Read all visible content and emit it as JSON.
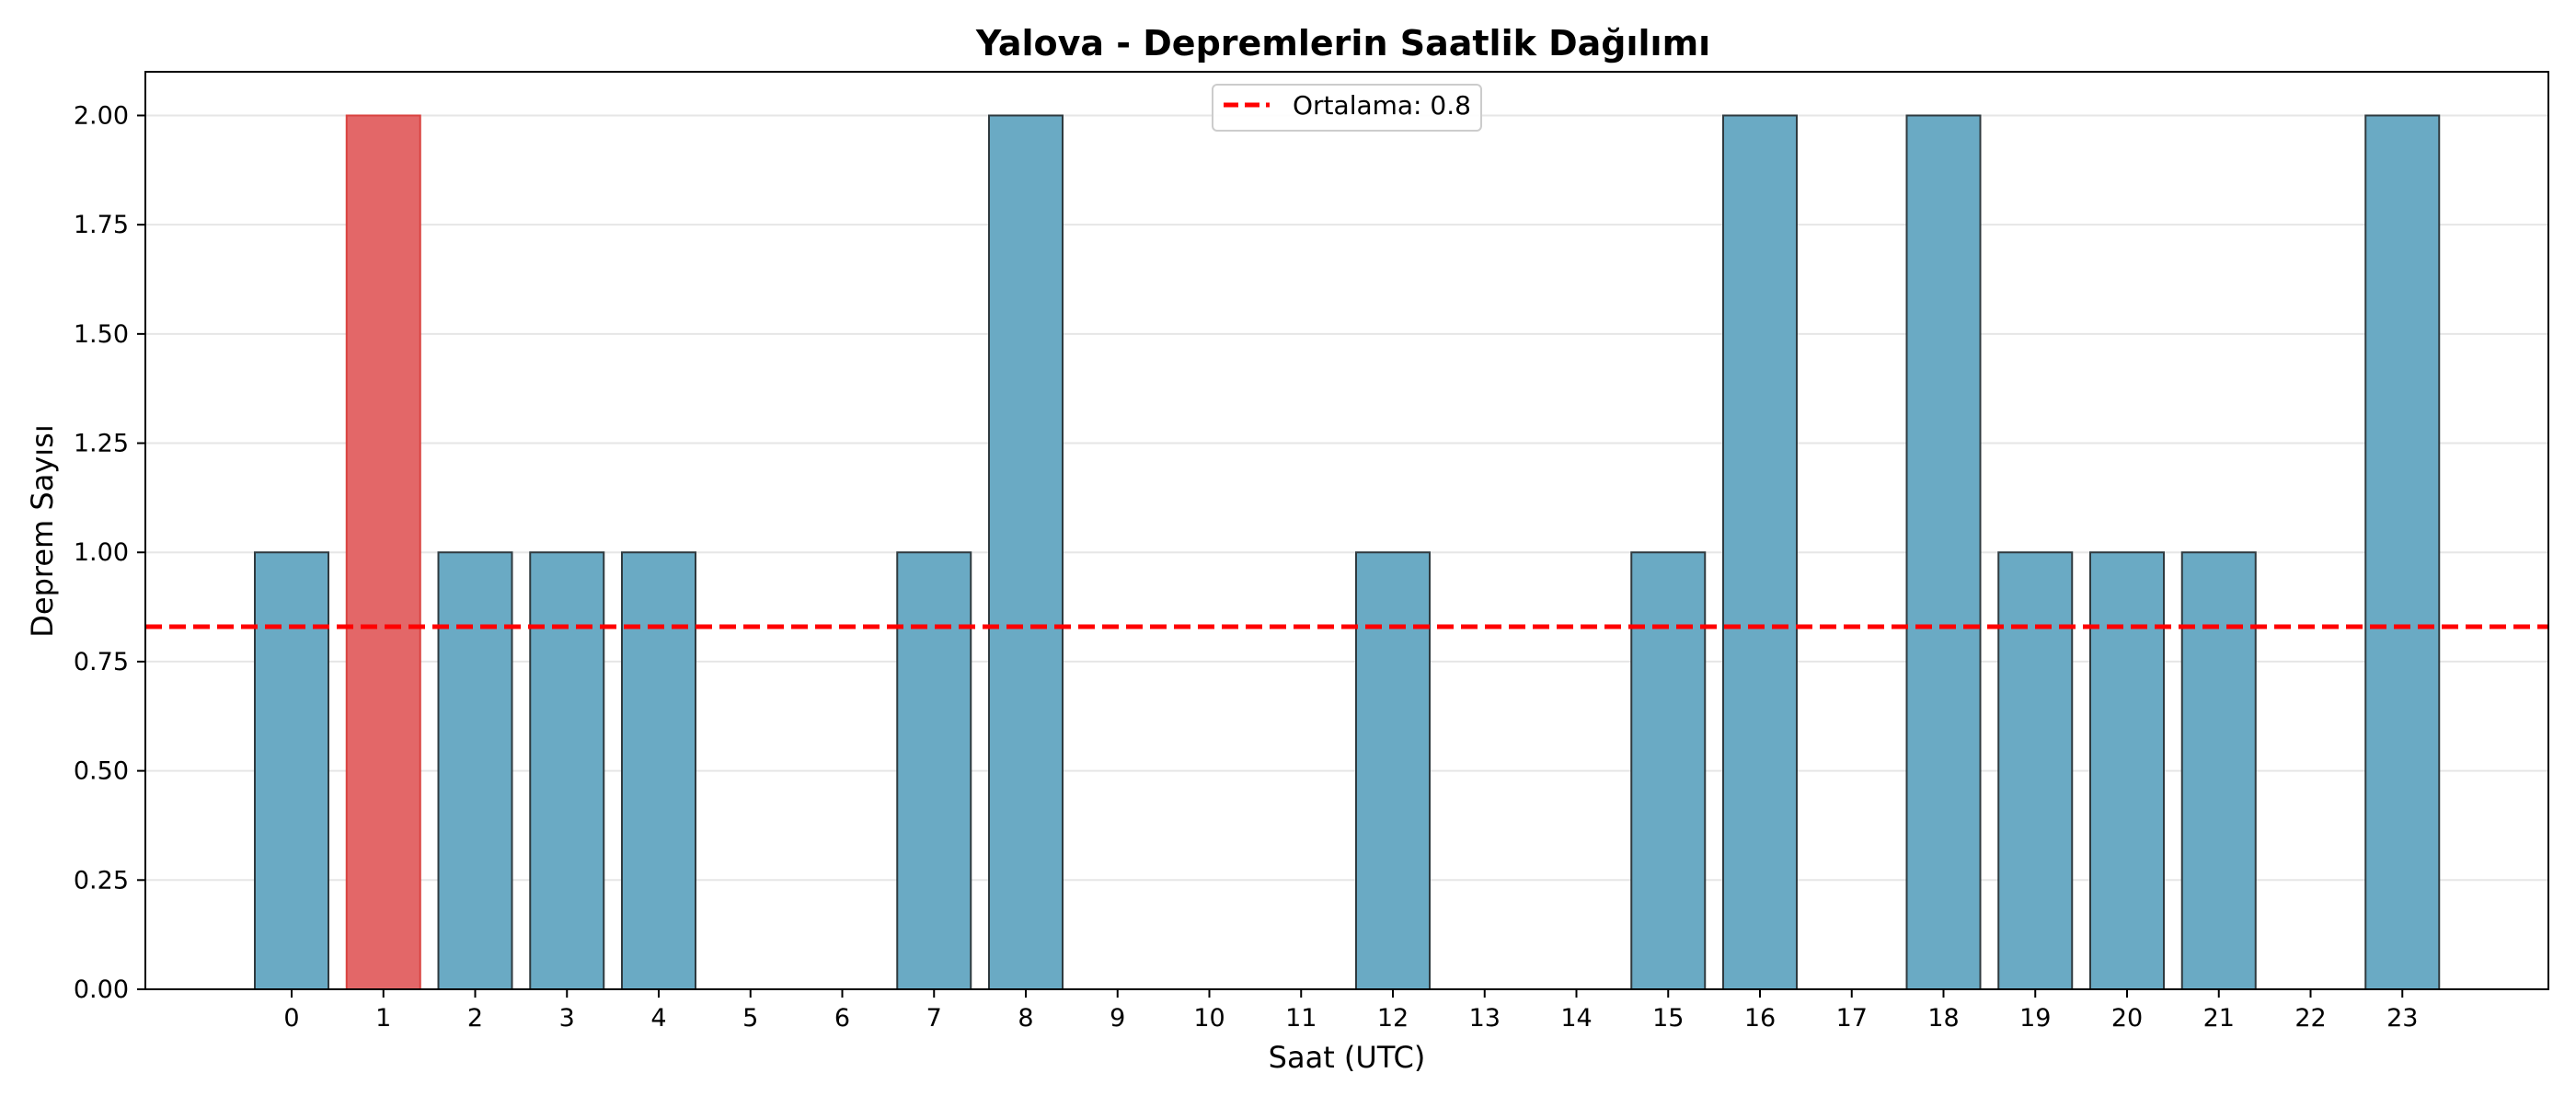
{
  "chart_data": {
    "type": "bar",
    "title": "Yalova - Depremlerin Saatlik Dağılımı",
    "xlabel": "Saat (UTC)",
    "ylabel": "Deprem Sayısı",
    "categories": [
      "0",
      "1",
      "2",
      "3",
      "4",
      "5",
      "6",
      "7",
      "8",
      "9",
      "10",
      "11",
      "12",
      "13",
      "14",
      "15",
      "16",
      "17",
      "18",
      "19",
      "20",
      "21",
      "22",
      "23"
    ],
    "series": [
      {
        "values": [
          1,
          2,
          1,
          1,
          1,
          0,
          0,
          1,
          2,
          0,
          0,
          0,
          1,
          0,
          0,
          1,
          2,
          0,
          2,
          1,
          1,
          1,
          0,
          2
        ]
      }
    ],
    "highlight_index": 1,
    "ylim": [
      0,
      2.1
    ],
    "y_ticks": [
      "0.00",
      "0.25",
      "0.50",
      "0.75",
      "1.00",
      "1.25",
      "1.50",
      "1.75",
      "2.00"
    ],
    "mean_line": {
      "value": 0.83,
      "label": "Ortalama: 0.8",
      "color": "#ff0000"
    },
    "legend_position": "top-center",
    "grid": "y",
    "colors": {
      "bar": "#6aaac4",
      "bar_edge": "#2f3a3f",
      "highlight": "#e36768",
      "highlight_edge": "#d9423f"
    }
  }
}
